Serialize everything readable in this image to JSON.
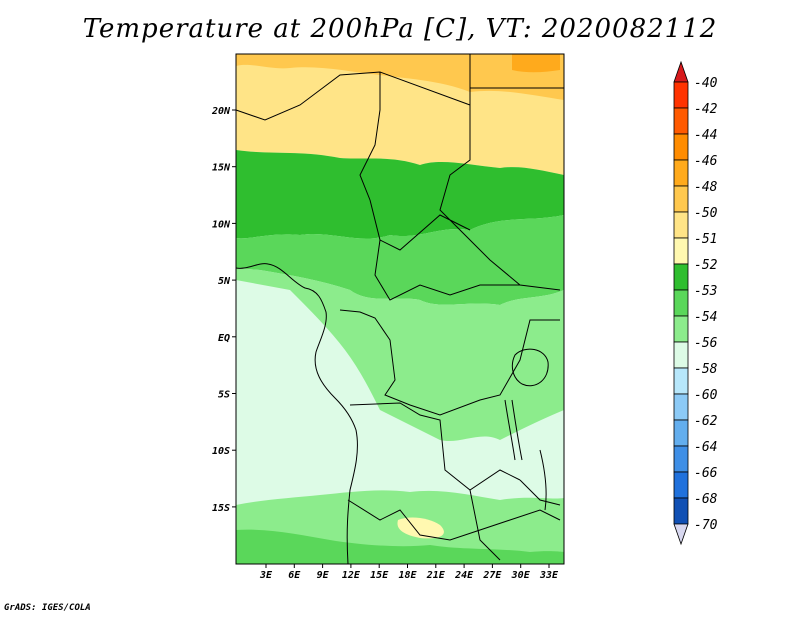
{
  "title": "Temperature at 200hPa [C], VT: 2020082112",
  "footer": "GrADS: IGES/COLA",
  "map": {
    "lon_labels": [
      "3E",
      "6E",
      "9E",
      "12E",
      "15E",
      "18E",
      "21E",
      "24E",
      "27E",
      "30E",
      "33E"
    ],
    "lat_labels": [
      "20N",
      "15N",
      "10N",
      "5N",
      "EQ",
      "5S",
      "10S",
      "15S"
    ]
  },
  "colorbar": {
    "top_color": "#d7191c",
    "bottom_color": "#d8d8f0",
    "entries": [
      {
        "label": "-40",
        "color": "#ff3300"
      },
      {
        "label": "-42",
        "color": "#ff5a00"
      },
      {
        "label": "-44",
        "color": "#ff8c00"
      },
      {
        "label": "-46",
        "color": "#ffaa1c"
      },
      {
        "label": "-48",
        "color": "#ffc84e"
      },
      {
        "label": "-50",
        "color": "#ffe487"
      },
      {
        "label": "-51",
        "color": "#fff8b0"
      },
      {
        "label": "-52",
        "color": "#2fbe2f"
      },
      {
        "label": "-53",
        "color": "#5ad75a"
      },
      {
        "label": "-54",
        "color": "#8cec8c"
      },
      {
        "label": "-56",
        "color": "#ddfbe6"
      },
      {
        "label": "-58",
        "color": "#b7e7fb"
      },
      {
        "label": "-60",
        "color": "#8ccaf6"
      },
      {
        "label": "-62",
        "color": "#63aeee"
      },
      {
        "label": "-64",
        "color": "#3f8fe6"
      },
      {
        "label": "-66",
        "color": "#2071dc"
      },
      {
        "label": "-68",
        "color": "#1150b4"
      },
      {
        "label": "-70",
        "color": "#0a1f7a"
      }
    ]
  }
}
